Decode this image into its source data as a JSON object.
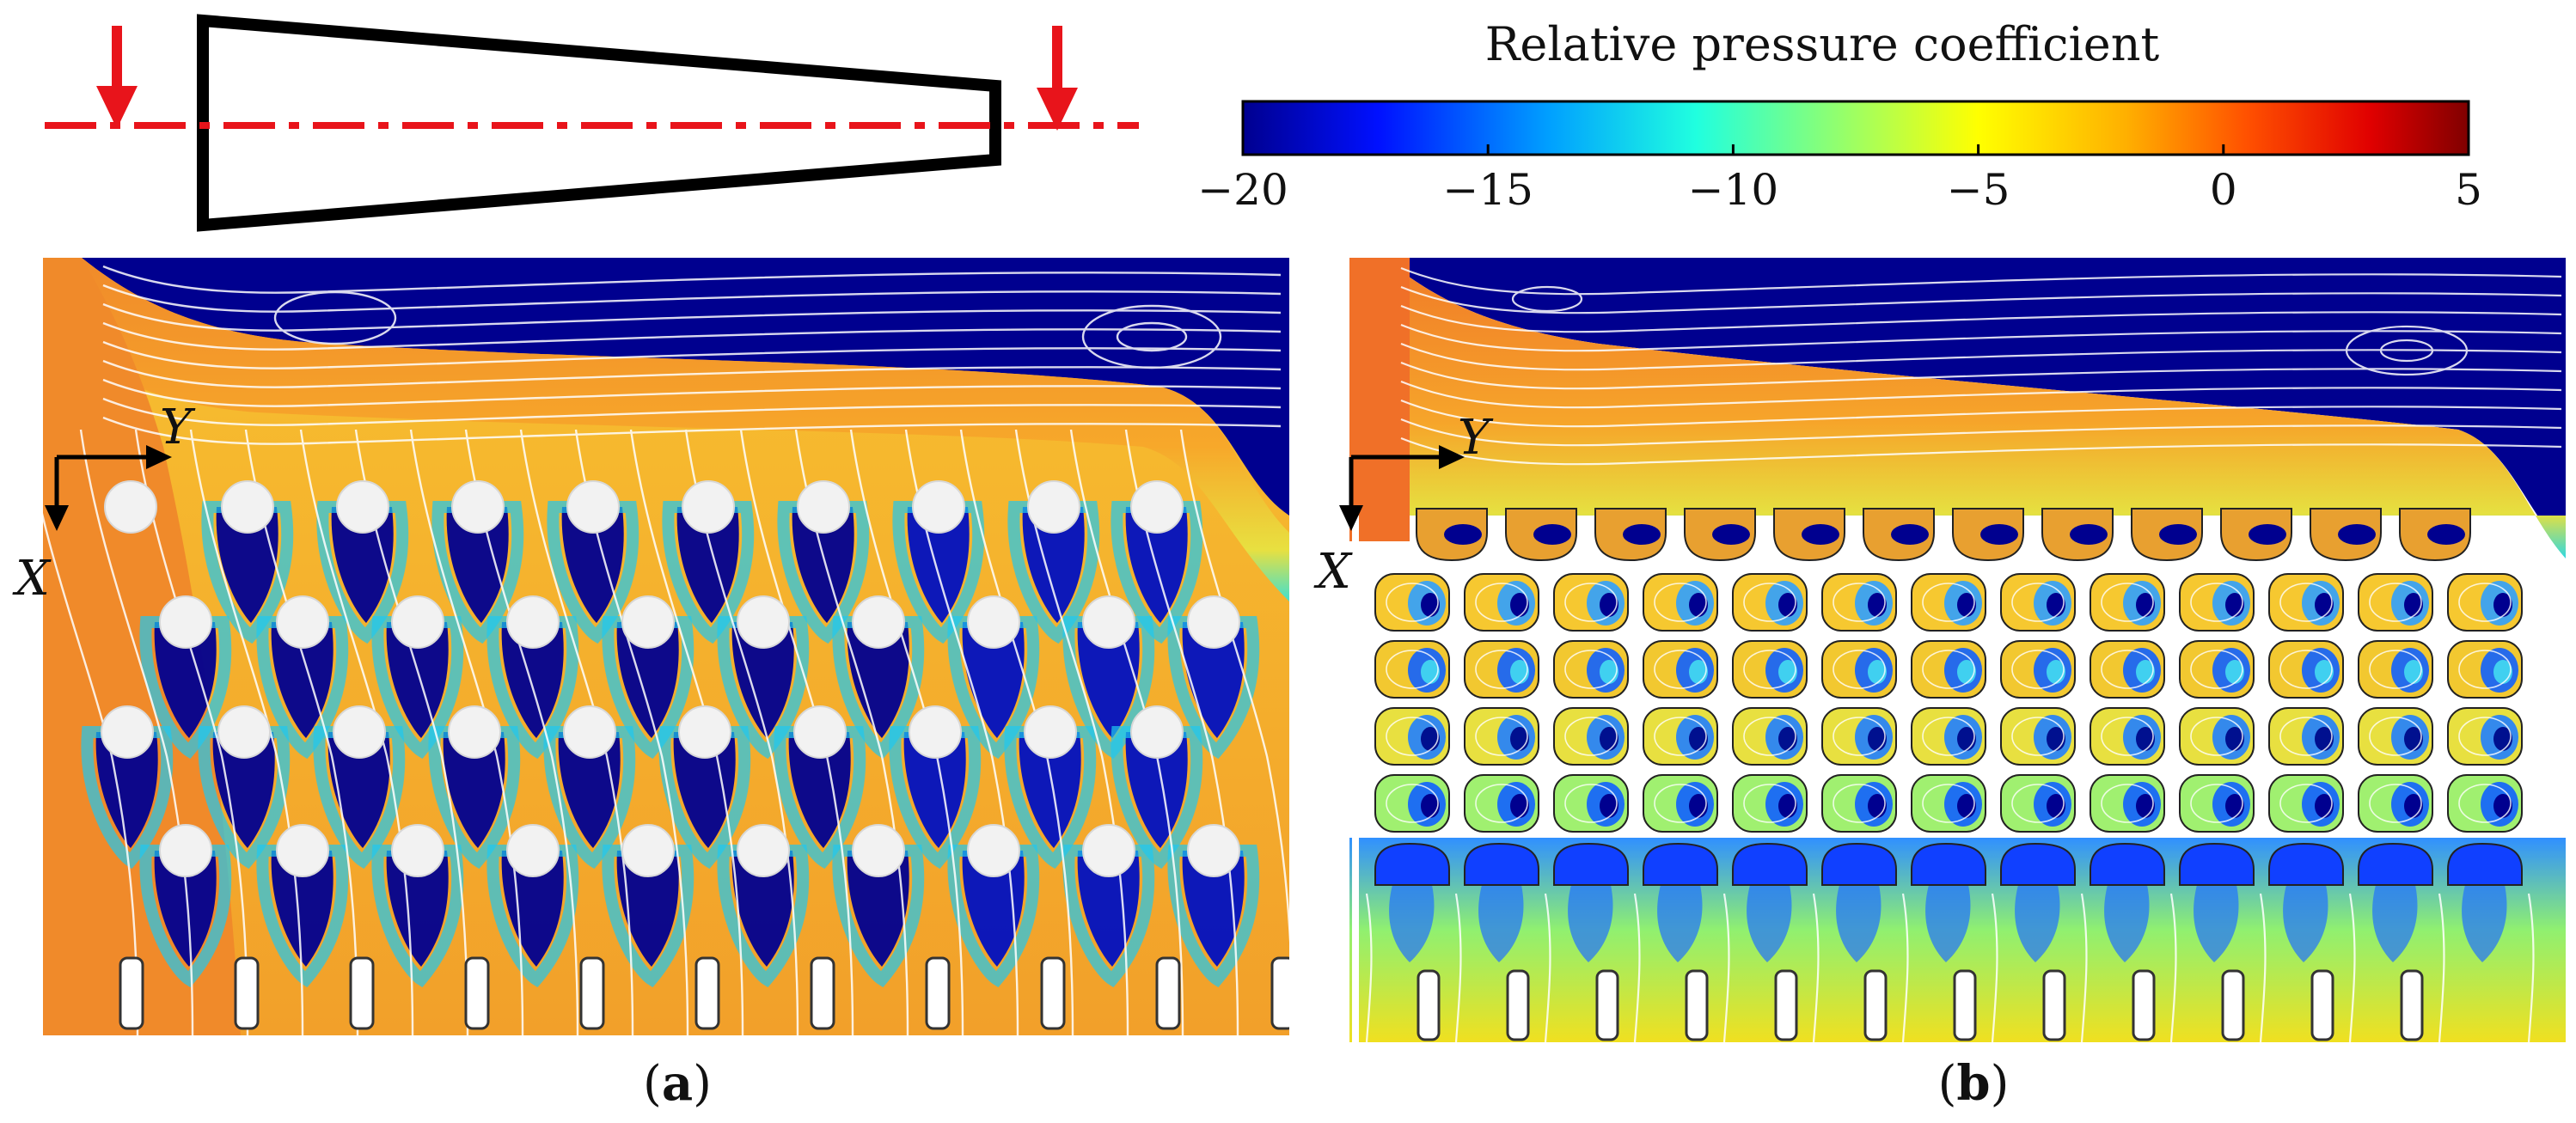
{
  "colorbar": {
    "title": "Relative pressure coefficient",
    "range": [
      -20,
      5
    ],
    "ticks": [
      "−20",
      "−15",
      "−10",
      "−5",
      "0",
      "5"
    ],
    "tick_values": [
      -20,
      -15,
      -10,
      -5,
      0,
      5
    ],
    "colormap": [
      "#00008f",
      "#0010ff",
      "#00a0ff",
      "#20ffdf",
      "#a0ff60",
      "#ffff00",
      "#ffb000",
      "#ff5000",
      "#e00000",
      "#800000"
    ]
  },
  "schematic": {
    "shape": "tapered channel with red dash-dot centerline and two downward inlet/outlet arrows"
  },
  "panel_a": {
    "axis_x": "X",
    "axis_y": "Y",
    "caption_open": "(",
    "caption_letter": "a",
    "caption_close": ")"
  },
  "panel_b": {
    "axis_x": "X",
    "axis_y": "Y",
    "caption_open": "(",
    "caption_letter": "b",
    "caption_close": ")"
  },
  "colors": {
    "fluid_high": "#f08a2a",
    "fluid_mid": "#f5d21a",
    "fluid_low": "#00008f",
    "centerline": "#e8141b",
    "streamline": "#ffffff",
    "outline": "#000000"
  }
}
